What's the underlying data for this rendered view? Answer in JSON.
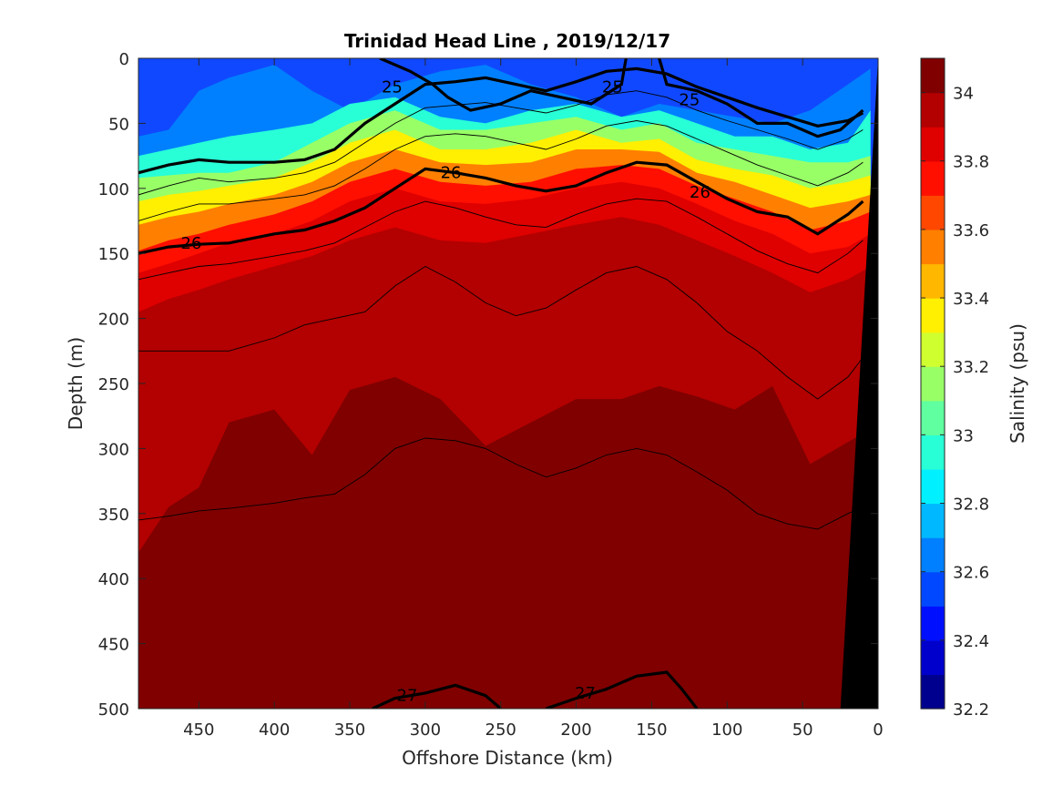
{
  "chart_data": {
    "type": "heatmap",
    "title": "Trinidad Head Line , 2019/12/17",
    "xlabel": "Offshore Distance (km)",
    "ylabel": "Depth (m)",
    "colorbar_label": "Salinity (psu)",
    "xlim": [
      490,
      0
    ],
    "ylim": [
      0,
      500
    ],
    "x_ticks": [
      450,
      400,
      350,
      300,
      250,
      200,
      150,
      100,
      50,
      0
    ],
    "y_ticks": [
      0,
      50,
      100,
      150,
      200,
      250,
      300,
      350,
      400,
      450,
      500
    ],
    "colorbar": {
      "range": [
        32.2,
        34.1
      ],
      "step": 0.1,
      "ticks": [
        32.2,
        32.4,
        32.6,
        32.8,
        33,
        33.2,
        33.4,
        33.6,
        33.8,
        34
      ],
      "colors": [
        "#00008f",
        "#0000cc",
        "#0010ff",
        "#0048ff",
        "#0080ff",
        "#00b8ff",
        "#00f0ff",
        "#28ffd7",
        "#60ff9f",
        "#98ff67",
        "#d0ff2f",
        "#ffef00",
        "#ffb700",
        "#ff7f00",
        "#ff4700",
        "#ff0f00",
        "#df0000",
        "#b30000",
        "#800000"
      ]
    },
    "salinity_layers": [
      {
        "salinity": 32.6,
        "depths": [
          60,
          55,
          25,
          15,
          5,
          25,
          40,
          20,
          10,
          5,
          20,
          30,
          45,
          35,
          40,
          45,
          50,
          40,
          20,
          8
        ]
      },
      {
        "salinity": 32.9,
        "depths": [
          75,
          70,
          65,
          60,
          55,
          50,
          35,
          30,
          45,
          50,
          40,
          35,
          45,
          40,
          50,
          60,
          60,
          70,
          65,
          40
        ]
      },
      {
        "salinity": 33.1,
        "depths": [
          92,
          90,
          88,
          88,
          80,
          65,
          50,
          40,
          55,
          55,
          50,
          45,
          55,
          50,
          65,
          70,
          75,
          80,
          80,
          75
        ]
      },
      {
        "salinity": 33.3,
        "depths": [
          110,
          105,
          102,
          98,
          92,
          80,
          65,
          55,
          70,
          70,
          65,
          55,
          65,
          62,
          78,
          85,
          90,
          100,
          95,
          90
        ]
      },
      {
        "salinity": 33.5,
        "depths": [
          128,
          122,
          118,
          112,
          105,
          95,
          80,
          70,
          80,
          82,
          80,
          70,
          70,
          72,
          88,
          95,
          105,
          115,
          110,
          105
        ]
      },
      {
        "salinity": 33.7,
        "depths": [
          148,
          140,
          135,
          128,
          120,
          110,
          95,
          85,
          95,
          98,
          95,
          85,
          82,
          85,
          98,
          108,
          118,
          132,
          125,
          118
        ]
      },
      {
        "salinity": 33.8,
        "depths": [
          165,
          158,
          150,
          142,
          135,
          125,
          110,
          100,
          110,
          112,
          108,
          100,
          95,
          100,
          112,
          125,
          135,
          150,
          145,
          135
        ]
      },
      {
        "salinity": 33.9,
        "depths": [
          195,
          185,
          178,
          170,
          160,
          152,
          140,
          130,
          140,
          142,
          135,
          128,
          122,
          128,
          140,
          152,
          165,
          180,
          170,
          160
        ]
      },
      {
        "salinity": 34.0,
        "depths": [
          380,
          345,
          330,
          280,
          270,
          305,
          255,
          245,
          262,
          298,
          280,
          262,
          262,
          252,
          260,
          270,
          252,
          312,
          295,
          285
        ]
      },
      {
        "salinity": 34.1,
        "depths": [
          505,
          490,
          485,
          470,
          460,
          445,
          422,
          412,
          432,
          485,
          455,
          415,
          405,
          415,
          440,
          490,
          495,
          470,
          465,
          490
        ]
      }
    ],
    "layer_x": [
      490,
      470,
      450,
      430,
      400,
      375,
      350,
      320,
      290,
      260,
      230,
      200,
      170,
      145,
      120,
      95,
      70,
      45,
      20,
      5
    ],
    "isopycnals": [
      {
        "label": "25",
        "x": [
          330,
          310,
          295,
          285,
          270,
          250,
          230,
          210,
          190,
          170,
          167
        ],
        "depth": [
          0,
          10,
          20,
          30,
          40,
          35,
          25,
          30,
          35,
          20,
          0
        ],
        "labels_at": [
          {
            "x": 322,
            "depth": 22
          }
        ]
      },
      {
        "label": "25",
        "x": [
          145,
          140,
          120,
          100,
          80,
          60,
          40,
          25,
          10
        ],
        "depth": [
          0,
          20,
          25,
          35,
          50,
          50,
          60,
          55,
          40
        ],
        "labels_at": [
          {
            "x": 176,
            "depth": 22
          },
          {
            "x": 125,
            "depth": 32
          }
        ]
      },
      {
        "label": "26",
        "x": [
          490,
          470,
          450,
          430,
          400,
          380,
          360,
          340,
          320,
          300,
          280,
          260,
          240,
          220,
          200,
          180,
          160,
          140,
          120,
          100,
          80,
          60,
          40,
          20,
          10
        ],
        "depth": [
          150,
          145,
          143,
          142,
          135,
          132,
          125,
          115,
          100,
          85,
          88,
          92,
          98,
          102,
          98,
          88,
          80,
          82,
          95,
          108,
          118,
          122,
          135,
          120,
          110
        ],
        "labels_at": [
          {
            "x": 455,
            "depth": 142
          },
          {
            "x": 283,
            "depth": 88
          },
          {
            "x": 118,
            "depth": 103
          }
        ]
      },
      {
        "label": "",
        "x": [
          490,
          470,
          450,
          430,
          400,
          380,
          360,
          340,
          320,
          300,
          280,
          260,
          240,
          220,
          200,
          180,
          160,
          140,
          120,
          100,
          80,
          60,
          40,
          20,
          10
        ],
        "depth": [
          88,
          82,
          78,
          80,
          80,
          78,
          70,
          50,
          35,
          20,
          18,
          15,
          20,
          25,
          18,
          10,
          8,
          12,
          22,
          30,
          38,
          45,
          52,
          48,
          42
        ],
        "labels_at": []
      },
      {
        "label": "27",
        "x": [
          335,
          320,
          300,
          280,
          260,
          250
        ],
        "depth": [
          500,
          492,
          488,
          482,
          490,
          500
        ],
        "labels_at": [
          {
            "x": 312,
            "depth": 490
          }
        ]
      },
      {
        "label": "27",
        "x": [
          220,
          200,
          180,
          160,
          140,
          130,
          120
        ],
        "depth": [
          500,
          492,
          485,
          475,
          472,
          485,
          500
        ],
        "labels_at": [
          {
            "x": 194,
            "depth": 488
          }
        ]
      }
    ],
    "thin_contours": [
      {
        "x": [
          490,
          470,
          450,
          430,
          400,
          380,
          360,
          340,
          320,
          300,
          280,
          260,
          240,
          220,
          200,
          180,
          160,
          140,
          120,
          100,
          80,
          60,
          40,
          20,
          10
        ],
        "depth": [
          105,
          98,
          92,
          95,
          92,
          88,
          80,
          65,
          50,
          38,
          36,
          34,
          38,
          42,
          36,
          28,
          25,
          30,
          40,
          48,
          55,
          62,
          70,
          62,
          55
        ]
      },
      {
        "x": [
          490,
          470,
          450,
          430,
          400,
          380,
          360,
          340,
          320,
          300,
          280,
          260,
          240,
          220,
          200,
          180,
          160,
          140,
          120,
          100,
          80,
          60,
          40,
          20,
          10
        ],
        "depth": [
          125,
          118,
          112,
          112,
          108,
          105,
          98,
          85,
          70,
          60,
          58,
          60,
          65,
          70,
          62,
          52,
          48,
          52,
          62,
          72,
          82,
          90,
          98,
          88,
          80
        ]
      },
      {
        "x": [
          490,
          470,
          450,
          430,
          400,
          380,
          360,
          340,
          320,
          300,
          280,
          260,
          240,
          220,
          200,
          180,
          160,
          140,
          120,
          100,
          80,
          60,
          40,
          20,
          10
        ],
        "depth": [
          170,
          165,
          160,
          158,
          152,
          148,
          142,
          130,
          118,
          110,
          115,
          122,
          128,
          130,
          120,
          112,
          108,
          110,
          122,
          135,
          148,
          158,
          165,
          150,
          140
        ]
      },
      {
        "x": [
          490,
          470,
          450,
          430,
          400,
          380,
          360,
          340,
          320,
          300,
          280,
          260,
          240,
          220,
          200,
          180,
          160,
          140,
          120,
          100,
          80,
          60,
          40,
          20,
          10
        ],
        "depth": [
          225,
          225,
          225,
          225,
          215,
          205,
          200,
          195,
          175,
          160,
          172,
          188,
          198,
          192,
          178,
          165,
          160,
          170,
          188,
          210,
          225,
          245,
          262,
          245,
          230
        ]
      },
      {
        "x": [
          490,
          470,
          450,
          430,
          400,
          380,
          360,
          340,
          320,
          300,
          280,
          260,
          240,
          220,
          200,
          180,
          160,
          140,
          120,
          100,
          80,
          60,
          40,
          20,
          10
        ],
        "depth": [
          355,
          352,
          348,
          346,
          342,
          338,
          335,
          320,
          300,
          292,
          294,
          300,
          312,
          322,
          315,
          305,
          300,
          305,
          318,
          332,
          350,
          358,
          362,
          350,
          345
        ]
      }
    ],
    "shelf": {
      "bottom_x": 25,
      "top_x": 0,
      "top_depth": 0
    }
  }
}
